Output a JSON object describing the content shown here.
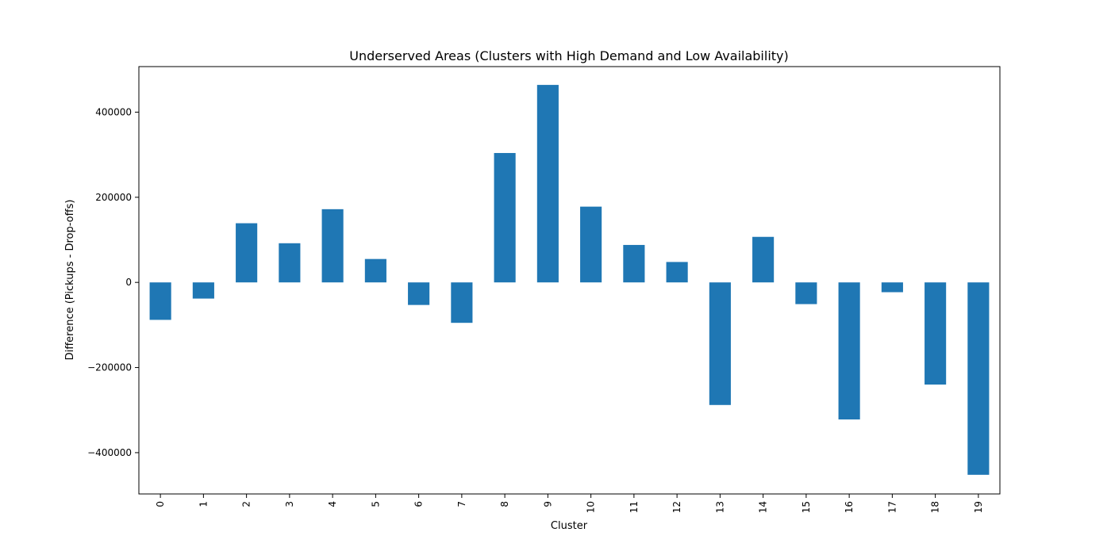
{
  "chart_data": {
    "type": "bar",
    "title": "Underserved Areas (Clusters with High Demand and Low Availability)",
    "xlabel": "Cluster",
    "ylabel": "Difference (Pickups - Drop-offs)",
    "categories": [
      "0",
      "1",
      "2",
      "3",
      "4",
      "5",
      "6",
      "7",
      "8",
      "9",
      "10",
      "11",
      "12",
      "13",
      "14",
      "15",
      "16",
      "17",
      "18",
      "19"
    ],
    "values": [
      -88000,
      -38000,
      139000,
      92000,
      172000,
      55000,
      -53000,
      -95000,
      304000,
      464000,
      178000,
      88000,
      48000,
      -288000,
      107000,
      -51000,
      -322000,
      -23000,
      -240000,
      -452000
    ],
    "ylim": [
      -497000,
      507000
    ],
    "yticks": [
      -400000,
      -200000,
      0,
      200000,
      400000
    ],
    "ytick_labels": [
      "−400000",
      "−200000",
      "0",
      "200000",
      "400000"
    ],
    "bar_color": "#1f77b4",
    "grid": false,
    "legend": "none"
  }
}
